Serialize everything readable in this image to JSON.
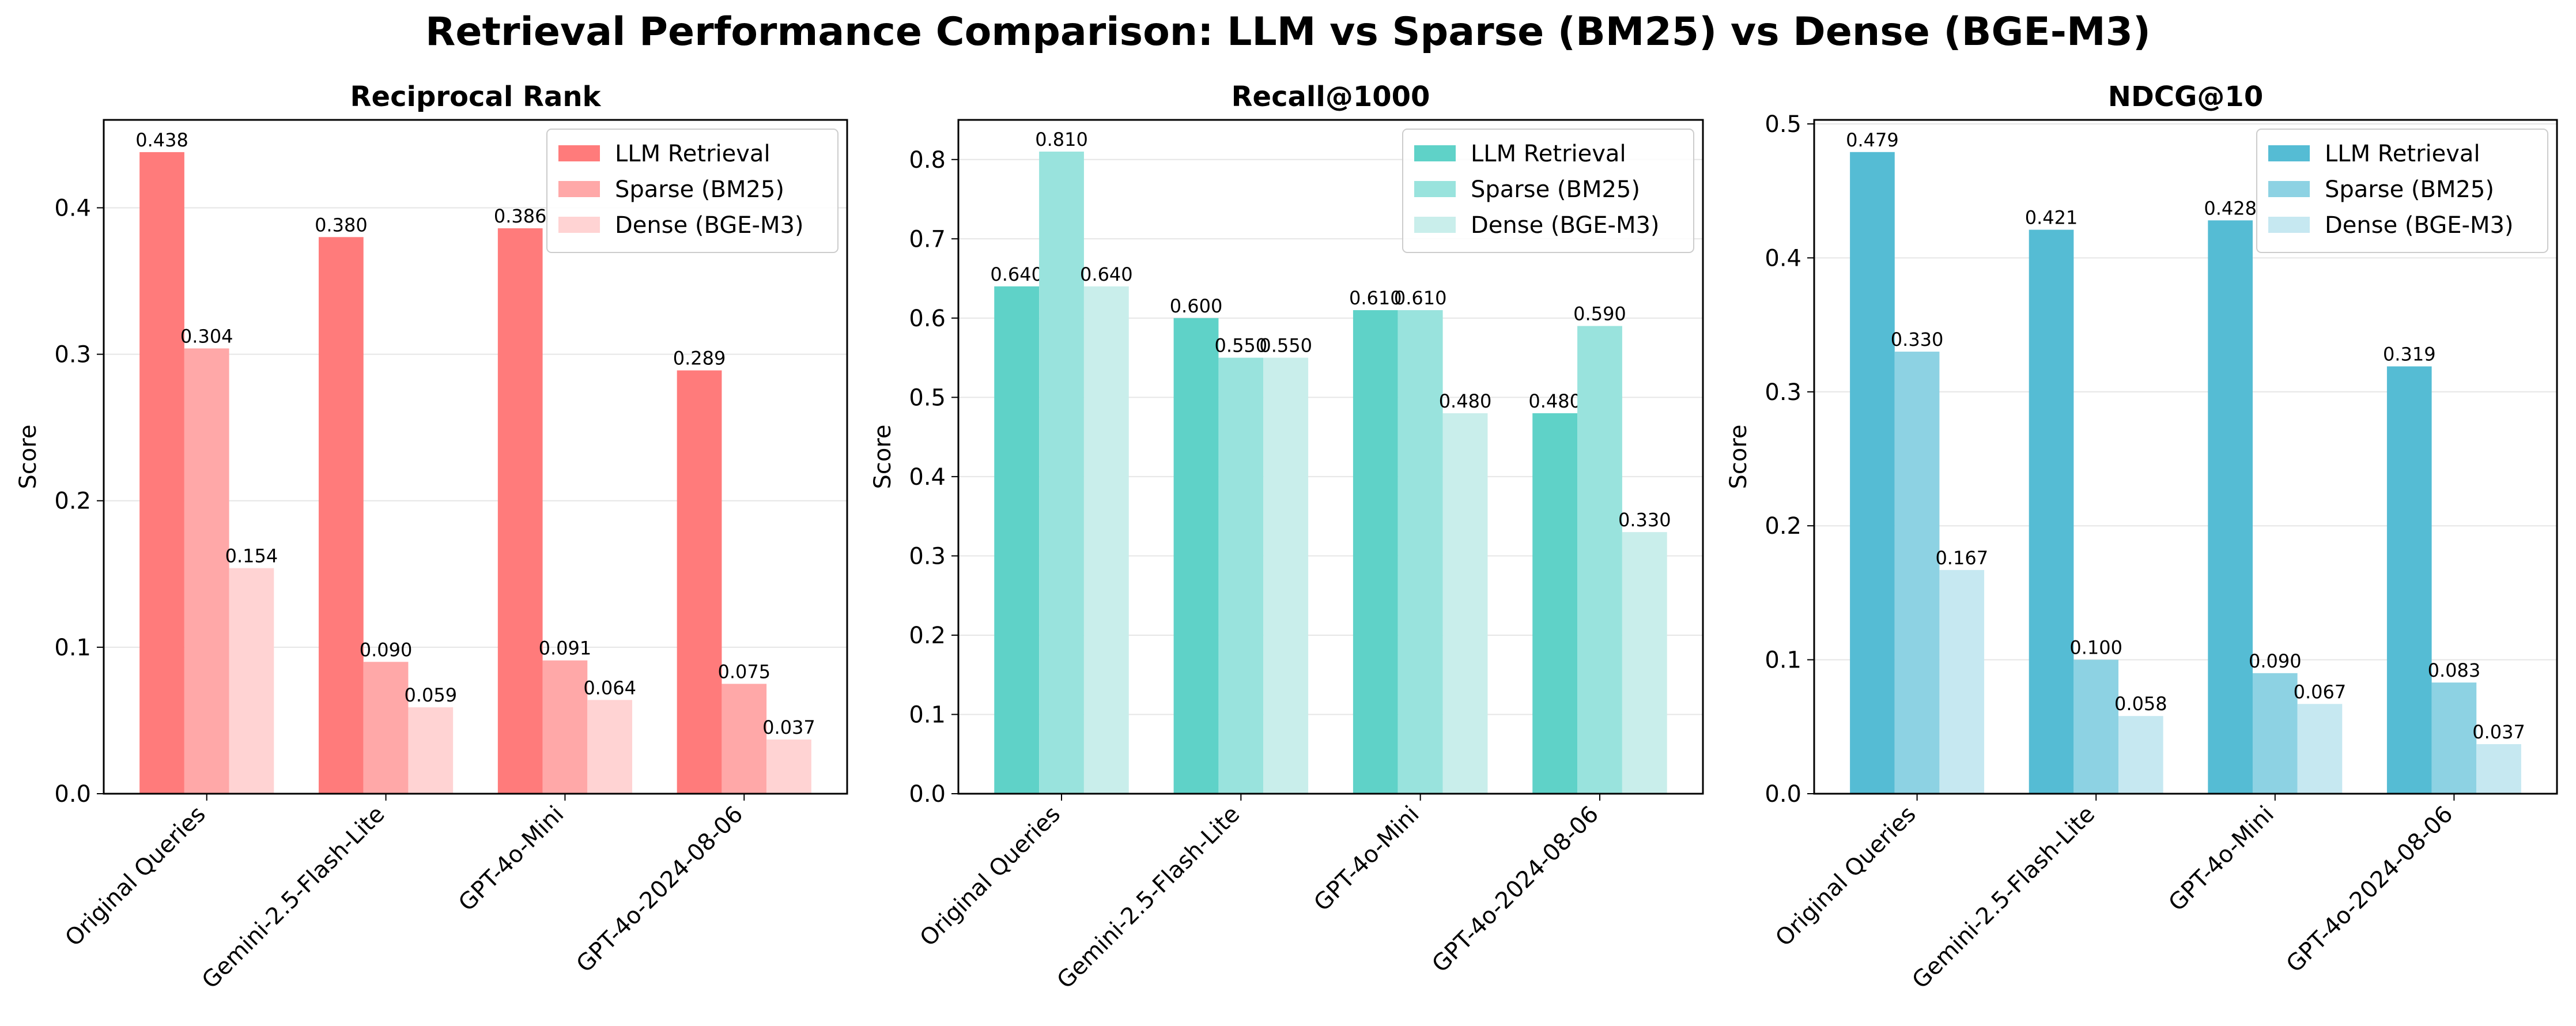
{
  "figure_title": "Retrieval Performance Comparison: LLM vs Sparse (BM25) vs Dense (BGE-M3)",
  "chart_data": [
    {
      "type": "bar",
      "title": "Reciprocal Rank",
      "xlabel": "",
      "ylabel": "Score",
      "ylim": [
        0,
        0.46
      ],
      "yticks": [
        0.0,
        0.1,
        0.2,
        0.3,
        0.4
      ],
      "ytick_labels": [
        "0.0",
        "0.1",
        "0.2",
        "0.3",
        "0.4"
      ],
      "grid": "y",
      "legend": "top-right",
      "categories": [
        "Original Queries",
        "Gemini-2.5-Flash-Lite",
        "GPT-4o-Mini",
        "GPT-4o-2024-08-06"
      ],
      "series": [
        {
          "name": "LLM Retrieval",
          "color": "#ff7b7b",
          "values": [
            0.438,
            0.38,
            0.386,
            0.289
          ],
          "labels": [
            "0.438",
            "0.380",
            "0.386",
            "0.289"
          ]
        },
        {
          "name": "Sparse (BM25)",
          "color": "#ffa8a8",
          "values": [
            0.304,
            0.09,
            0.091,
            0.075
          ],
          "labels": [
            "0.304",
            "0.090",
            "0.091",
            "0.075"
          ]
        },
        {
          "name": "Dense (BGE-M3)",
          "color": "#ffd3d3",
          "values": [
            0.154,
            0.059,
            0.064,
            0.037
          ],
          "labels": [
            "0.154",
            "0.059",
            "0.064",
            "0.037"
          ]
        }
      ]
    },
    {
      "type": "bar",
      "title": "Recall@1000",
      "xlabel": "",
      "ylabel": "Score",
      "ylim": [
        0,
        0.85
      ],
      "yticks": [
        0.0,
        0.1,
        0.2,
        0.3,
        0.4,
        0.5,
        0.6,
        0.7,
        0.8
      ],
      "ytick_labels": [
        "0.0",
        "0.1",
        "0.2",
        "0.3",
        "0.4",
        "0.5",
        "0.6",
        "0.7",
        "0.8"
      ],
      "grid": "y",
      "legend": "top-right",
      "categories": [
        "Original Queries",
        "Gemini-2.5-Flash-Lite",
        "GPT-4o-Mini",
        "GPT-4o-2024-08-06"
      ],
      "series": [
        {
          "name": "LLM Retrieval",
          "color": "#5fd2c8",
          "values": [
            0.64,
            0.6,
            0.61,
            0.48
          ],
          "labels": [
            "0.640",
            "0.600",
            "0.610",
            "0.480"
          ]
        },
        {
          "name": "Sparse (BM25)",
          "color": "#99e3dd",
          "values": [
            0.81,
            0.55,
            0.61,
            0.59
          ],
          "labels": [
            "0.810",
            "0.550",
            "0.610",
            "0.590"
          ]
        },
        {
          "name": "Dense (BGE-M3)",
          "color": "#c9eeeb",
          "values": [
            0.64,
            0.55,
            0.48,
            0.33
          ],
          "labels": [
            "0.640",
            "0.550",
            "0.480",
            "0.330"
          ]
        }
      ]
    },
    {
      "type": "bar",
      "title": "NDCG@10",
      "xlabel": "",
      "ylabel": "Score",
      "ylim": [
        0,
        0.503
      ],
      "yticks": [
        0.0,
        0.1,
        0.2,
        0.3,
        0.4,
        0.5
      ],
      "ytick_labels": [
        "0.0",
        "0.1",
        "0.2",
        "0.3",
        "0.4",
        "0.5"
      ],
      "grid": "y",
      "legend": "top-right",
      "categories": [
        "Original Queries",
        "Gemini-2.5-Flash-Lite",
        "GPT-4o-Mini",
        "GPT-4o-2024-08-06"
      ],
      "series": [
        {
          "name": "LLM Retrieval",
          "color": "#55bcd4",
          "values": [
            0.479,
            0.421,
            0.428,
            0.319
          ],
          "labels": [
            "0.479",
            "0.421",
            "0.428",
            "0.319"
          ]
        },
        {
          "name": "Sparse (BM25)",
          "color": "#8dd2e3",
          "values": [
            0.33,
            0.1,
            0.09,
            0.083
          ],
          "labels": [
            "0.330",
            "0.100",
            "0.090",
            "0.083"
          ]
        },
        {
          "name": "Dense (BGE-M3)",
          "color": "#c6e8f1",
          "values": [
            0.167,
            0.058,
            0.067,
            0.037
          ],
          "labels": [
            "0.167",
            "0.058",
            "0.067",
            "0.037"
          ]
        }
      ]
    }
  ]
}
